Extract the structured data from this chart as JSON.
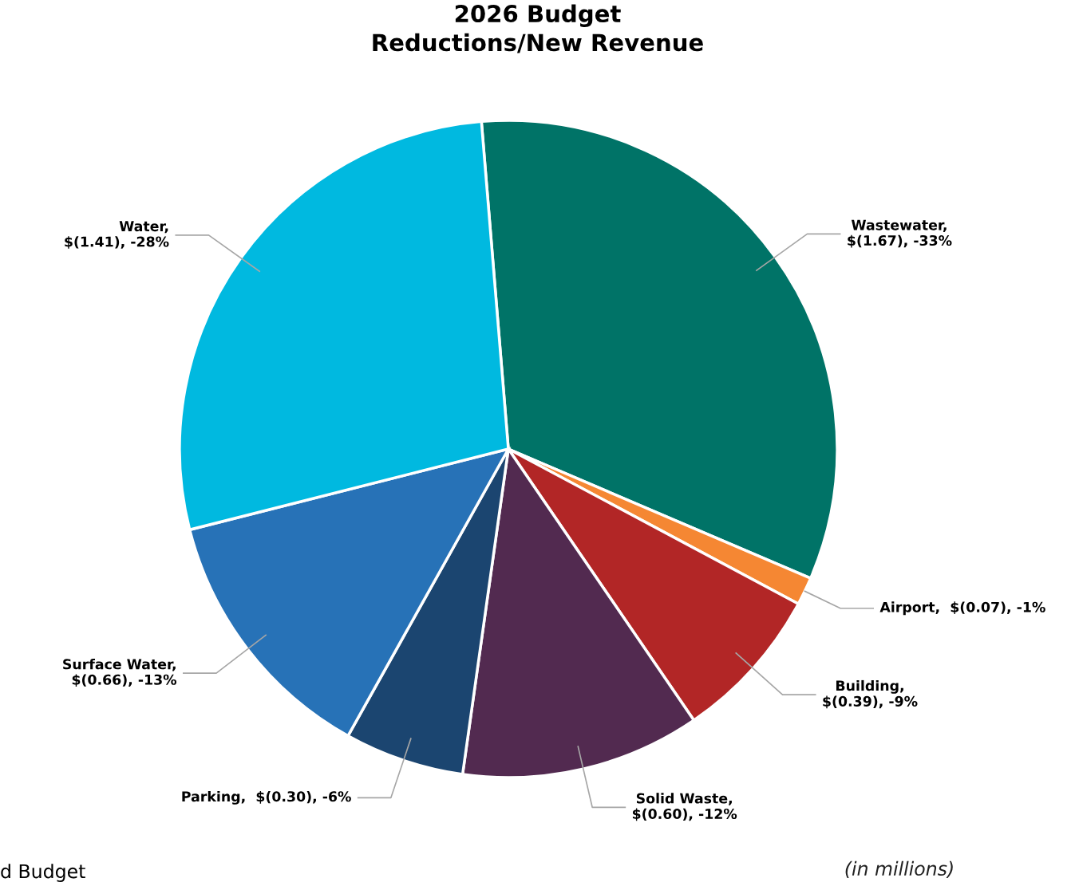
{
  "chart_data": {
    "type": "pie",
    "title": "2026 Budget\nReductions/New Revenue",
    "categories": [
      "Wastewater",
      "Airport",
      "Building",
      "Solid Waste",
      "Parking",
      "Surface Water",
      "Water"
    ],
    "values": [
      1.67,
      0.07,
      0.39,
      0.6,
      0.3,
      0.66,
      1.41
    ],
    "value_labels": [
      ",\n$(1.67), -33%",
      ",  $(0.07), -1%",
      ",\n$(0.39), -9%",
      ",\n$(0.60), -12%",
      ",  $(0.30), -6%",
      ",\n$(0.66), -13%",
      ",\n$(1.41), -28%"
    ],
    "colors": [
      "#007367",
      "#f58733",
      "#b22626",
      "#522a50",
      "#1b4570",
      "#2772b7",
      "#00b9e0"
    ],
    "annotations": [
      "(in millions)",
      "d Budget"
    ],
    "legend": false
  }
}
